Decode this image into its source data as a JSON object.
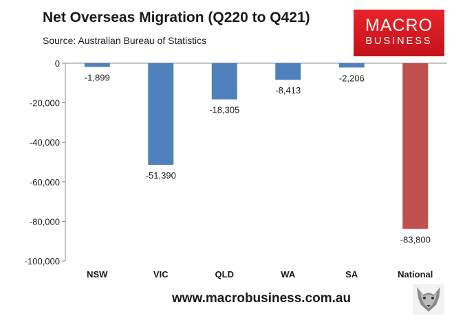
{
  "header": {
    "title": "Net Overseas Migration (Q220 to Q421)",
    "subtitle": "Source: Australian Bureau of Statistics"
  },
  "logo": {
    "line1": "MACRO",
    "line2": "BUSINESS",
    "color": "#d9171f"
  },
  "footer": {
    "url": "www.macrobusiness.com.au",
    "mascot_icon": "wolf-icon"
  },
  "chart_data": {
    "type": "bar",
    "title": "Net Overseas Migration (Q220 to Q421)",
    "categories": [
      "NSW",
      "VIC",
      "QLD",
      "WA",
      "SA",
      "National"
    ],
    "values": [
      -1899,
      -51390,
      -18305,
      -8413,
      -2206,
      -83800
    ],
    "data_labels": [
      "-1,899",
      "-51,390",
      "-18,305",
      "-8,413",
      "-2,206",
      "-83,800"
    ],
    "bar_colors": [
      "#4f81bd",
      "#4f81bd",
      "#4f81bd",
      "#4f81bd",
      "#4f81bd",
      "#c0504d"
    ],
    "y_ticks": [
      0,
      -20000,
      -40000,
      -60000,
      -80000,
      -100000
    ],
    "y_tick_labels": [
      "0",
      "-20,000",
      "-40,000",
      "-60,000",
      "-80,000",
      "-100,000"
    ],
    "ylim": [
      -100000,
      0
    ],
    "xlabel": "",
    "ylabel": "",
    "grid": false,
    "legend": "none"
  }
}
